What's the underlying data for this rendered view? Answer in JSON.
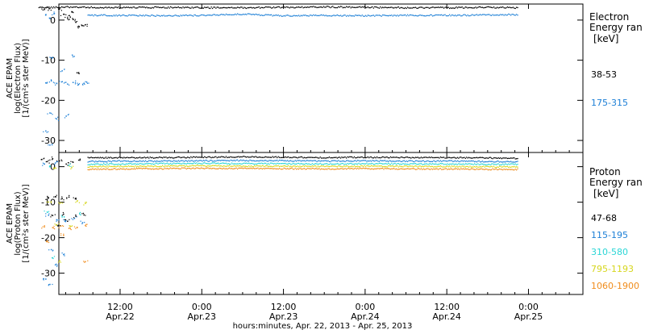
{
  "chart_data": [
    {
      "type": "scatter",
      "instrument_label": "ACE EPAM",
      "ylabel": "log(Electron Flux)",
      "ylabel_units": "[1/(cm²s ster MeV)]",
      "yticks": [
        0,
        -10,
        -20,
        -30
      ],
      "ylim": [
        -33,
        4
      ],
      "legend_title_line1": "Electron",
      "legend_title_line2": "Energy ran",
      "legend_unit": "[keV]",
      "series": [
        {
          "name": "38-53",
          "color": "#000000",
          "level": [
            [
              0.0,
              3.2
            ],
            [
              4.0,
              3.4
            ],
            [
              7.2,
              3.3
            ],
            [
              12.0,
              3.2
            ],
            [
              18.0,
              3.3
            ],
            [
              24.0,
              3.2
            ],
            [
              30.0,
              3.2
            ],
            [
              36.0,
              3.3
            ],
            [
              42.0,
              3.4
            ],
            [
              48.0,
              3.3
            ],
            [
              54.0,
              3.2
            ],
            [
              60.0,
              3.2
            ],
            [
              66.0,
              3.3
            ],
            [
              70.5,
              3.2
            ]
          ],
          "scatter": [
            [
              0.8,
              2.8
            ],
            [
              1.5,
              3.0
            ],
            [
              3.0,
              2.9
            ],
            [
              4.2,
              0.5
            ],
            [
              4.6,
              0.9
            ],
            [
              5.0,
              0.3
            ],
            [
              5.4,
              -0.4
            ],
            [
              5.9,
              -1.5
            ],
            [
              6.3,
              -1.2
            ],
            [
              6.8,
              -1.0
            ],
            [
              5.6,
              -13.0
            ],
            [
              3.6,
              1.6
            ],
            [
              4.9,
              2.2
            ]
          ]
        },
        {
          "name": "175-315",
          "color": "#1c7fd6",
          "level": [
            [
              7.2,
              1.3
            ],
            [
              12.0,
              1.3
            ],
            [
              18.0,
              1.2
            ],
            [
              24.0,
              1.3
            ],
            [
              30.0,
              1.6
            ],
            [
              36.0,
              1.2
            ],
            [
              42.0,
              1.3
            ],
            [
              48.0,
              1.2
            ],
            [
              54.0,
              1.3
            ],
            [
              60.0,
              1.3
            ],
            [
              66.0,
              1.4
            ],
            [
              70.5,
              1.5
            ]
          ],
          "scatter": [
            [
              1.0,
              1.4
            ],
            [
              1.6,
              0.6
            ],
            [
              2.2,
              1.7
            ],
            [
              1.0,
              -15.5
            ],
            [
              1.8,
              -15.0
            ],
            [
              2.6,
              -15.6
            ],
            [
              3.4,
              -15.2
            ],
            [
              4.2,
              -15.8
            ],
            [
              5.0,
              -15.4
            ],
            [
              5.8,
              -15.9
            ],
            [
              6.6,
              -15.6
            ],
            [
              7.0,
              -15.3
            ],
            [
              2.0,
              -9.2
            ],
            [
              5.0,
              -9.0
            ],
            [
              1.6,
              -23.0
            ],
            [
              2.6,
              -24.5
            ],
            [
              4.0,
              -23.8
            ],
            [
              1.0,
              -27.5
            ],
            [
              1.6,
              -31.0
            ],
            [
              3.4,
              -12.5
            ]
          ]
        }
      ]
    },
    {
      "type": "scatter",
      "instrument_label": "ACE EPAM",
      "ylabel": "log(Proton Flux)",
      "ylabel_units": "[1/(cm²s ster MeV)]",
      "yticks": [
        0,
        -10,
        -20,
        -30
      ],
      "ylim": [
        -36,
        4
      ],
      "xticks": [
        {
          "x": 12,
          "label1": "12:00",
          "label2": "Apr.22"
        },
        {
          "x": 24,
          "label1": "0:00",
          "label2": "Apr.23"
        },
        {
          "x": 36,
          "label1": "12:00",
          "label2": "Apr.23"
        },
        {
          "x": 48,
          "label1": "0:00",
          "label2": "Apr.24"
        },
        {
          "x": 60,
          "label1": "12:00",
          "label2": "Apr.24"
        },
        {
          "x": 72,
          "label1": "0:00",
          "label2": "Apr.25"
        }
      ],
      "xlabel": "hours:minutes, Apr. 22, 2013 - Apr. 25, 2013",
      "legend_title_line1": "Proton",
      "legend_title_line2": "Energy ran",
      "legend_unit": "[keV]",
      "series": [
        {
          "name": "47-68",
          "color": "#000000",
          "level": [
            [
              7.2,
              2.6
            ],
            [
              12.0,
              2.7
            ],
            [
              18.0,
              2.7
            ],
            [
              24.0,
              2.8
            ],
            [
              30.0,
              2.9
            ],
            [
              36.0,
              2.8
            ],
            [
              42.0,
              2.7
            ],
            [
              48.0,
              2.8
            ],
            [
              54.0,
              2.7
            ],
            [
              60.0,
              2.7
            ],
            [
              66.0,
              2.6
            ],
            [
              70.5,
              2.5
            ]
          ],
          "scatter": [
            [
              0.4,
              2.2
            ],
            [
              1.2,
              1.6
            ],
            [
              2.0,
              2.4
            ],
            [
              3.0,
              1.8
            ],
            [
              4.0,
              0.9
            ],
            [
              5.0,
              1.4
            ],
            [
              6.0,
              2.0
            ],
            [
              1.4,
              -8.6
            ],
            [
              2.4,
              -8.3
            ],
            [
              3.4,
              -8.8
            ],
            [
              4.4,
              -8.4
            ],
            [
              5.4,
              -8.7
            ],
            [
              2.0,
              -13.6
            ],
            [
              3.6,
              -13.2
            ],
            [
              5.4,
              -13.8
            ],
            [
              6.6,
              -13.4
            ],
            [
              4.2,
              -15.2
            ],
            [
              2.8,
              -16.4
            ]
          ]
        },
        {
          "name": "115-195",
          "color": "#1c7fd6",
          "level": [
            [
              7.2,
              1.6
            ],
            [
              12.0,
              1.7
            ],
            [
              18.0,
              1.7
            ],
            [
              24.0,
              1.8
            ],
            [
              30.0,
              1.9
            ],
            [
              36.0,
              1.8
            ],
            [
              42.0,
              1.7
            ],
            [
              48.0,
              1.8
            ],
            [
              54.0,
              1.7
            ],
            [
              60.0,
              1.7
            ],
            [
              66.0,
              1.6
            ],
            [
              70.5,
              1.5
            ]
          ],
          "scatter": [
            [
              0.8,
              0.9
            ],
            [
              2.4,
              1.2
            ],
            [
              1.4,
              -13.5
            ],
            [
              2.6,
              -14.8
            ],
            [
              3.8,
              -15.2
            ],
            [
              5.2,
              -14.4
            ],
            [
              6.4,
              -15.6
            ],
            [
              1.8,
              -23.2
            ],
            [
              3.6,
              -24.6
            ],
            [
              1.0,
              -31.5
            ],
            [
              1.6,
              -33.0
            ],
            [
              2.4,
              -27.5
            ]
          ]
        },
        {
          "name": "310-580",
          "color": "#2bd6d6",
          "level": [
            [
              7.2,
              0.8
            ],
            [
              12.0,
              0.9
            ],
            [
              18.0,
              1.0
            ],
            [
              24.0,
              1.1
            ],
            [
              30.0,
              1.0
            ],
            [
              36.0,
              1.0
            ],
            [
              42.0,
              0.9
            ],
            [
              48.0,
              1.0
            ],
            [
              54.0,
              0.9
            ],
            [
              60.0,
              0.9
            ],
            [
              66.0,
              0.8
            ],
            [
              70.5,
              0.8
            ]
          ],
          "scatter": [
            [
              1.6,
              0.2
            ],
            [
              4.4,
              0.6
            ],
            [
              1.2,
              -12.6
            ],
            [
              3.4,
              -14.0
            ],
            [
              6.0,
              -13.2
            ],
            [
              2.0,
              -25.5
            ]
          ]
        },
        {
          "name": "795-1193",
          "color": "#d6d61c",
          "level": [
            [
              7.2,
              0.1
            ],
            [
              12.0,
              0.2
            ],
            [
              18.0,
              0.3
            ],
            [
              24.0,
              0.4
            ],
            [
              30.0,
              0.3
            ],
            [
              36.0,
              0.3
            ],
            [
              42.0,
              0.2
            ],
            [
              48.0,
              0.3
            ],
            [
              54.0,
              0.2
            ],
            [
              60.0,
              0.2
            ],
            [
              66.0,
              0.1
            ],
            [
              70.5,
              0.1
            ]
          ],
          "scatter": [
            [
              2.2,
              -0.4
            ],
            [
              4.8,
              -0.1
            ],
            [
              1.4,
              -9.8
            ],
            [
              3.2,
              -10.0
            ],
            [
              5.6,
              -9.6
            ],
            [
              6.8,
              -10.2
            ],
            [
              2.6,
              -16.2
            ],
            [
              4.6,
              -16.6
            ],
            [
              3.0,
              -26.4
            ]
          ]
        },
        {
          "name": "1060-1900",
          "color": "#f08c1c",
          "level": [
            [
              7.2,
              -0.6
            ],
            [
              12.0,
              -0.5
            ],
            [
              18.0,
              -0.4
            ],
            [
              24.0,
              -0.3
            ],
            [
              30.0,
              -0.4
            ],
            [
              36.0,
              -0.4
            ],
            [
              42.0,
              -0.5
            ],
            [
              48.0,
              -0.4
            ],
            [
              54.0,
              -0.5
            ],
            [
              60.0,
              -0.5
            ],
            [
              66.0,
              -0.6
            ],
            [
              70.5,
              -0.6
            ]
          ],
          "scatter": [
            [
              0.8,
              -16.8
            ],
            [
              2.0,
              -17.0
            ],
            [
              3.2,
              -16.6
            ],
            [
              4.4,
              -17.2
            ],
            [
              5.6,
              -16.9
            ],
            [
              6.8,
              -16.4
            ],
            [
              3.6,
              -19.2
            ],
            [
              6.8,
              -26.6
            ],
            [
              1.2,
              -21.0
            ]
          ]
        }
      ]
    }
  ]
}
